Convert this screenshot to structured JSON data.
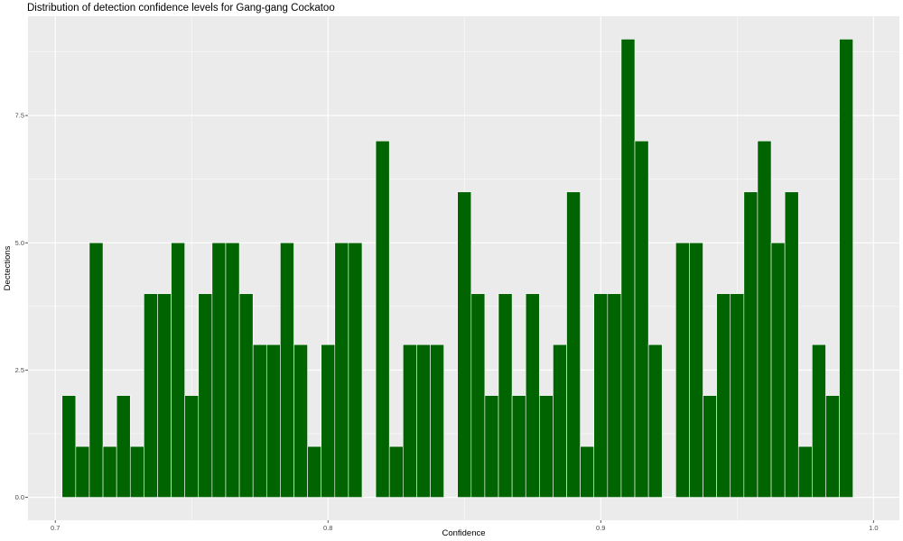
{
  "chart_data": {
    "type": "bar",
    "title": "Distribution of detection confidence levels for Gang-gang Cockatoo",
    "xlabel": "Confidence",
    "ylabel": "Dectections",
    "bar_color": "#006400",
    "panel_color": "#ebebeb",
    "grid": true,
    "x_ticks": [
      0.7,
      0.8,
      0.9,
      1.0
    ],
    "x_tick_labels": [
      "0.7",
      "0.8",
      "0.9",
      "1.0"
    ],
    "y_ticks": [
      0,
      2.5,
      5,
      7.5
    ],
    "y_tick_labels": [
      "0.0",
      "2.5",
      "5.0",
      "7.5"
    ],
    "xlim": [
      0.69,
      1.0095
    ],
    "ylim": [
      -0.45,
      9.45
    ],
    "bin_width": 0.005,
    "x": [
      0.705,
      0.71,
      0.715,
      0.72,
      0.725,
      0.73,
      0.735,
      0.74,
      0.745,
      0.75,
      0.755,
      0.76,
      0.765,
      0.77,
      0.775,
      0.78,
      0.785,
      0.79,
      0.795,
      0.8,
      0.805,
      0.81,
      0.815,
      0.82,
      0.825,
      0.83,
      0.835,
      0.84,
      0.845,
      0.85,
      0.855,
      0.86,
      0.865,
      0.87,
      0.875,
      0.88,
      0.885,
      0.89,
      0.895,
      0.9,
      0.905,
      0.91,
      0.915,
      0.92,
      0.925,
      0.93,
      0.935,
      0.94,
      0.945,
      0.95,
      0.955,
      0.96,
      0.965,
      0.97,
      0.975,
      0.98,
      0.985,
      0.99
    ],
    "values": [
      2,
      1,
      5,
      1,
      2,
      1,
      4,
      4,
      5,
      2,
      4,
      5,
      5,
      4,
      3,
      3,
      5,
      3,
      1,
      3,
      5,
      5,
      0,
      7,
      1,
      3,
      3,
      3,
      0,
      6,
      4,
      2,
      4,
      2,
      4,
      2,
      3,
      6,
      1,
      4,
      4,
      9,
      7,
      3,
      0,
      5,
      5,
      2,
      4,
      4,
      6,
      7,
      5,
      6,
      1,
      3,
      2,
      9
    ]
  }
}
